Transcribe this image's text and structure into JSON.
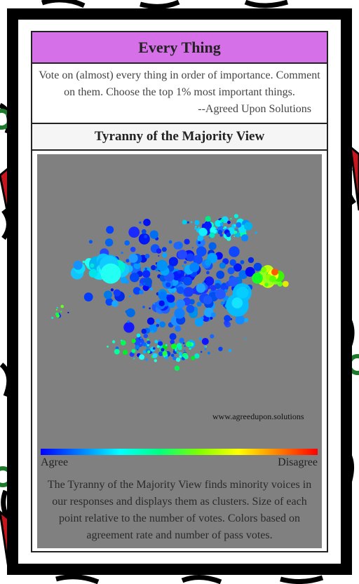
{
  "header": {
    "title": "Every Thing",
    "description": "Vote on (almost) every thing in order of importance. Comment on them. Choose the top 1% most important things.",
    "attribution": "--Agreed Upon Solutions"
  },
  "view": {
    "title": "Tyranny of the Majority View",
    "watermark": "www.agreedupon.solutions",
    "scale": {
      "low": "Agree",
      "high": "Disagree"
    },
    "caption": "The Tyranny of the Majority View finds minority voices in our responses and displays them as clusters. Size of each point relative to the number of votes. Colors based on agreement rate and number of pass votes."
  }
}
